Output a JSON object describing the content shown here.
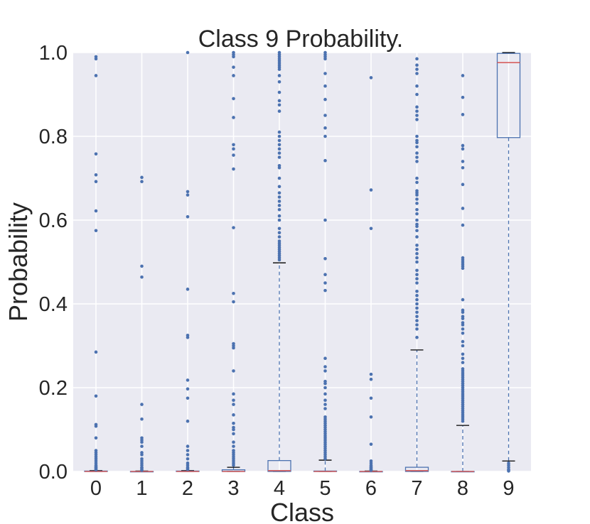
{
  "chart_data": {
    "type": "box",
    "title": "Class 9 Probability.",
    "xlabel": "Class",
    "ylabel": "Probability",
    "ylim": [
      0,
      1
    ],
    "yticks": [
      "0.0",
      "0.2",
      "0.4",
      "0.6",
      "0.8",
      "1.0"
    ],
    "categories": [
      "0",
      "1",
      "2",
      "3",
      "4",
      "5",
      "6",
      "7",
      "8",
      "9"
    ],
    "grid": true,
    "colors": {
      "background": "#eaeaf2",
      "grid": "#ffffff",
      "box": "#4c72b0",
      "median": "#d65f5f",
      "whisker": "#4c72b0",
      "cap": "#000000",
      "flier": "#4c72b0"
    },
    "boxes": [
      {
        "class": "0",
        "q1": 0.0,
        "median": 0.0,
        "q3": 0.001,
        "whisker_low": 0.0,
        "whisker_high": 0.002,
        "fliers": [
          0.99,
          0.985,
          0.945,
          0.758,
          0.708,
          0.692,
          0.622,
          0.575,
          0.285,
          0.18,
          0.112,
          0.108,
          0.08,
          0.05,
          0.045,
          0.04,
          0.035,
          0.03,
          0.025,
          0.02,
          0.015,
          0.012,
          0.01,
          0.008,
          0.006,
          0.004
        ]
      },
      {
        "class": "1",
        "q1": 0.0,
        "median": 0.0,
        "q3": 0.0,
        "whisker_low": 0.0,
        "whisker_high": 0.001,
        "fliers": [
          0.702,
          0.692,
          0.49,
          0.464,
          0.16,
          0.125,
          0.08,
          0.075,
          0.07,
          0.06,
          0.045,
          0.04,
          0.03,
          0.025,
          0.02,
          0.015,
          0.01,
          0.008,
          0.005,
          0.003
        ]
      },
      {
        "class": "2",
        "q1": 0.0,
        "median": 0.0,
        "q3": 0.001,
        "whisker_low": 0.0,
        "whisker_high": 0.002,
        "fliers": [
          1.0,
          0.668,
          0.66,
          0.608,
          0.435,
          0.325,
          0.32,
          0.218,
          0.197,
          0.175,
          0.12,
          0.06,
          0.05,
          0.04,
          0.03,
          0.02,
          0.015,
          0.01,
          0.007,
          0.005
        ]
      },
      {
        "class": "3",
        "q1": 0.0,
        "median": 0.0,
        "q3": 0.004,
        "whisker_low": 0.0,
        "whisker_high": 0.01,
        "fliers": [
          1.0,
          0.995,
          0.99,
          0.965,
          0.945,
          0.89,
          0.845,
          0.78,
          0.77,
          0.755,
          0.722,
          0.582,
          0.425,
          0.405,
          0.305,
          0.3,
          0.295,
          0.24,
          0.185,
          0.17,
          0.16,
          0.135,
          0.115,
          0.105,
          0.1,
          0.09,
          0.07,
          0.06,
          0.05,
          0.045,
          0.04,
          0.035,
          0.03,
          0.025,
          0.02,
          0.015
        ]
      },
      {
        "class": "4",
        "q1": 0.0,
        "median": 0.002,
        "q3": 0.026,
        "whisker_low": 0.0,
        "whisker_high": 0.498,
        "fliers": [
          1.0,
          0.995,
          0.99,
          0.985,
          0.98,
          0.975,
          0.97,
          0.965,
          0.96,
          0.945,
          0.93,
          0.905,
          0.885,
          0.875,
          0.86,
          0.81,
          0.8,
          0.79,
          0.78,
          0.77,
          0.76,
          0.75,
          0.73,
          0.725,
          0.7,
          0.68,
          0.665,
          0.655,
          0.645,
          0.635,
          0.625,
          0.61,
          0.6,
          0.58,
          0.57,
          0.56,
          0.55,
          0.545,
          0.54,
          0.535,
          0.53,
          0.525,
          0.52,
          0.515,
          0.51,
          0.505
        ]
      },
      {
        "class": "5",
        "q1": 0.0,
        "median": 0.0,
        "q3": 0.001,
        "whisker_low": 0.0,
        "whisker_high": 0.027,
        "fliers": [
          1.0,
          0.995,
          0.99,
          0.985,
          0.95,
          0.92,
          0.888,
          0.85,
          0.82,
          0.8,
          0.742,
          0.6,
          0.508,
          0.47,
          0.45,
          0.432,
          0.27,
          0.25,
          0.24,
          0.215,
          0.21,
          0.2,
          0.185,
          0.17,
          0.16,
          0.15,
          0.13,
          0.125,
          0.12,
          0.115,
          0.11,
          0.105,
          0.1,
          0.095,
          0.09,
          0.085,
          0.08,
          0.075,
          0.07,
          0.065,
          0.06,
          0.055,
          0.05,
          0.045,
          0.04,
          0.035,
          0.03
        ]
      },
      {
        "class": "6",
        "q1": 0.0,
        "median": 0.0,
        "q3": 0.0,
        "whisker_low": 0.0,
        "whisker_high": 0.001,
        "fliers": [
          0.94,
          0.672,
          0.58,
          0.232,
          0.22,
          0.175,
          0.13,
          0.065,
          0.025,
          0.02,
          0.015,
          0.012,
          0.01,
          0.008,
          0.006,
          0.004,
          0.003
        ]
      },
      {
        "class": "7",
        "q1": 0.0,
        "median": 0.002,
        "q3": 0.01,
        "whisker_low": 0.0,
        "whisker_high": 0.29,
        "fliers": [
          0.985,
          0.97,
          0.96,
          0.95,
          0.92,
          0.9,
          0.87,
          0.86,
          0.85,
          0.84,
          0.8,
          0.79,
          0.785,
          0.775,
          0.76,
          0.75,
          0.74,
          0.7,
          0.69,
          0.67,
          0.665,
          0.66,
          0.65,
          0.64,
          0.625,
          0.615,
          0.6,
          0.59,
          0.585,
          0.575,
          0.56,
          0.54,
          0.53,
          0.52,
          0.51,
          0.5,
          0.48,
          0.47,
          0.46,
          0.45,
          0.43,
          0.42,
          0.41,
          0.4,
          0.39,
          0.38,
          0.37,
          0.36,
          0.35,
          0.34,
          0.32
        ]
      },
      {
        "class": "8",
        "q1": 0.0,
        "median": 0.0,
        "q3": 0.0,
        "whisker_low": 0.0,
        "whisker_high": 0.11,
        "fliers": [
          0.945,
          0.893,
          0.852,
          0.778,
          0.77,
          0.74,
          0.725,
          0.685,
          0.628,
          0.588,
          0.51,
          0.505,
          0.5,
          0.495,
          0.49,
          0.485,
          0.41,
          0.385,
          0.38,
          0.37,
          0.365,
          0.355,
          0.35,
          0.34,
          0.33,
          0.31,
          0.3,
          0.28,
          0.27,
          0.26,
          0.245,
          0.24,
          0.235,
          0.23,
          0.225,
          0.22,
          0.215,
          0.21,
          0.205,
          0.2,
          0.195,
          0.19,
          0.185,
          0.18,
          0.175,
          0.17,
          0.165,
          0.16,
          0.155,
          0.15,
          0.145,
          0.14,
          0.135,
          0.13,
          0.125,
          0.12
        ]
      },
      {
        "class": "9",
        "q1": 0.797,
        "median": 0.976,
        "q3": 0.998,
        "whisker_low": 0.025,
        "whisker_high": 1.0,
        "fliers": [
          0.02,
          0.015,
          0.01,
          0.005,
          0.003,
          0.001
        ]
      }
    ]
  }
}
